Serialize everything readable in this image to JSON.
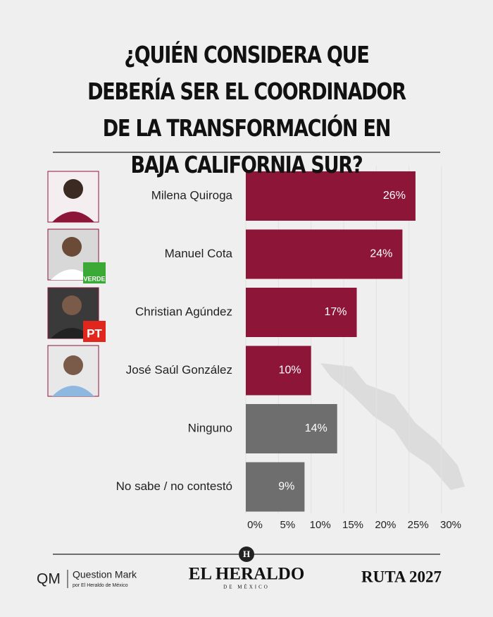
{
  "chart_data": {
    "type": "barh",
    "title": "¿QUIÉN CONSIDERA QUE DEBERÍA SER EL COORDINADOR DE LA TRANSFORMACIÓN EN BAJA CALIFORNIA SUR?",
    "categories": [
      "Milena Quiroga",
      "Manuel Cota",
      "Christian Agúndez",
      "José Saúl González",
      "Ninguno",
      "No sabe / no contestó"
    ],
    "values": [
      26,
      24,
      17,
      10,
      14,
      9
    ],
    "value_labels": [
      "26%",
      "24%",
      "17%",
      "10%",
      "14%",
      "9%"
    ],
    "colors": [
      "#8c1538",
      "#8c1538",
      "#8c1538",
      "#8c1538",
      "#6e6e6e",
      "#6e6e6e"
    ],
    "xlim": [
      0,
      30
    ],
    "xticks": [
      {
        "value": 0,
        "label": "0%"
      },
      {
        "value": 5,
        "label": "5%"
      },
      {
        "value": 10,
        "label": "10%"
      },
      {
        "value": 15,
        "label": "15%"
      },
      {
        "value": 20,
        "label": "20%"
      },
      {
        "value": 25,
        "label": "25%"
      },
      {
        "value": 30,
        "label": "30%"
      }
    ],
    "grid": true
  },
  "badges": [
    "VERDE",
    "PT"
  ],
  "footer": {
    "qm": "QM",
    "qm_name": "Question Mark",
    "qm_sub": "por El Heraldo de México",
    "emblem": "H",
    "heraldo": "EL HERALDO",
    "heraldo_sub": "DE MÉXICO",
    "ruta": "RUTA 2027"
  }
}
